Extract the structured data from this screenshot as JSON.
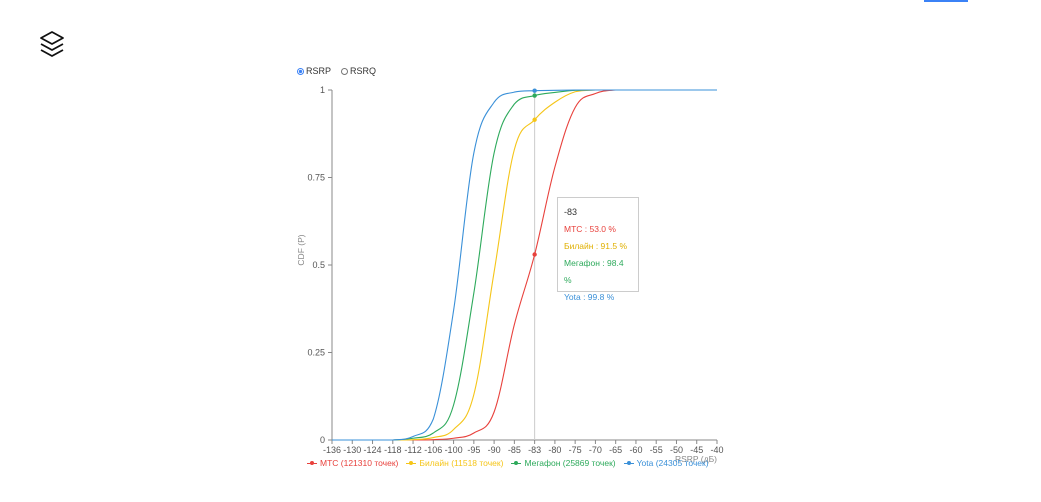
{
  "controls": {
    "metric_options": [
      {
        "label": "RSRP",
        "selected": true
      },
      {
        "label": "RSRQ",
        "selected": false
      }
    ]
  },
  "icons": {
    "logo": "layers-icon"
  },
  "colors": {
    "accent": "#3b82f6",
    "grid": "#dddddd",
    "cursor": "#cccccc"
  },
  "chart_data": {
    "type": "line",
    "title": "",
    "xlabel": "RSRP (дБ)",
    "ylabel": "CDF (P)",
    "x_categories": [
      "-136",
      "-130",
      "-124",
      "-118",
      "-112",
      "-106",
      "-100",
      "-95",
      "-90",
      "-85",
      "-83",
      "-80",
      "-75",
      "-70",
      "-65",
      "-60",
      "-55",
      "-50",
      "-45",
      "-40"
    ],
    "y_ticks": [
      "0",
      "0.25",
      "0.5",
      "0.75",
      "1"
    ],
    "ylim": [
      0,
      1
    ],
    "grid": false,
    "legend_position": "bottom",
    "series": [
      {
        "name": "МТС (121310 точек)",
        "color": "#e8413c",
        "values": [
          0,
          0,
          0,
          0,
          0,
          0.001,
          0.005,
          0.02,
          0.08,
          0.33,
          0.53,
          0.78,
          0.95,
          0.99,
          1,
          1,
          1,
          1,
          1,
          1
        ]
      },
      {
        "name": "Билайн (11518 точек)",
        "color": "#f5c518",
        "values": [
          0,
          0,
          0,
          0,
          0.001,
          0.007,
          0.03,
          0.13,
          0.48,
          0.83,
          0.915,
          0.965,
          0.995,
          1,
          1,
          1,
          1,
          1,
          1,
          1
        ]
      },
      {
        "name": "Мегафон (25869 точек)",
        "color": "#2eaa5c",
        "values": [
          0,
          0,
          0,
          0,
          0.005,
          0.02,
          0.1,
          0.42,
          0.82,
          0.96,
          0.984,
          0.993,
          0.999,
          1,
          1,
          1,
          1,
          1,
          1,
          1
        ]
      },
      {
        "name": "Yota (24305 точек)",
        "color": "#3a90d8",
        "values": [
          0,
          0,
          0,
          0,
          0.01,
          0.06,
          0.37,
          0.82,
          0.965,
          0.994,
          0.998,
          0.999,
          1,
          1,
          1,
          1,
          1,
          1,
          1,
          1
        ]
      }
    ],
    "tooltip": {
      "x": "-83",
      "rows": [
        {
          "text": "МТС : 53.0 %",
          "color": "#e8413c"
        },
        {
          "text": "Билайн : 91.5 %",
          "color": "#f5c518"
        },
        {
          "text": "Мегафон : 98.4 %",
          "color": "#2eaa5c"
        },
        {
          "text": "Yota : 99.8 %",
          "color": "#3a90d8"
        }
      ]
    },
    "cursor_x_category": "-83"
  }
}
